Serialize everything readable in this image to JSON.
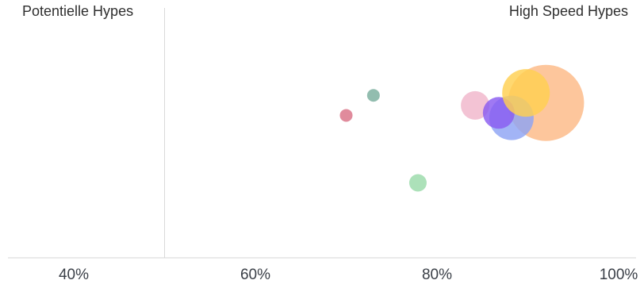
{
  "chart_data": {
    "type": "scatter",
    "title": "",
    "xlabel": "",
    "ylabel": "",
    "xlim": [
      35,
      100
    ],
    "x_ticks": [
      "40%",
      "60%",
      "80%",
      "100%"
    ],
    "x_tick_values": [
      40,
      60,
      80,
      100
    ],
    "divider_x": 50,
    "quadrant_labels": {
      "left": "Potentielle Hypes",
      "right": "High Speed Hypes"
    },
    "grid": false,
    "legend": "none",
    "bubbles": [
      {
        "x": 92.0,
        "y": 0.62,
        "size": 48,
        "color": "#fdba86"
      },
      {
        "x": 88.2,
        "y": 0.56,
        "size": 28,
        "color": "#8ea4f4"
      },
      {
        "x": 84.2,
        "y": 0.61,
        "size": 18,
        "color": "#f0b6ca"
      },
      {
        "x": 86.8,
        "y": 0.58,
        "size": 20,
        "color": "#8a5cf0"
      },
      {
        "x": 89.8,
        "y": 0.66,
        "size": 30,
        "color": "#ffcf50"
      },
      {
        "x": 73.0,
        "y": 0.65,
        "size": 8,
        "color": "#7aae9d"
      },
      {
        "x": 70.0,
        "y": 0.57,
        "size": 8,
        "color": "#d97286"
      },
      {
        "x": 77.9,
        "y": 0.3,
        "size": 11,
        "color": "#9adaaa"
      }
    ]
  }
}
